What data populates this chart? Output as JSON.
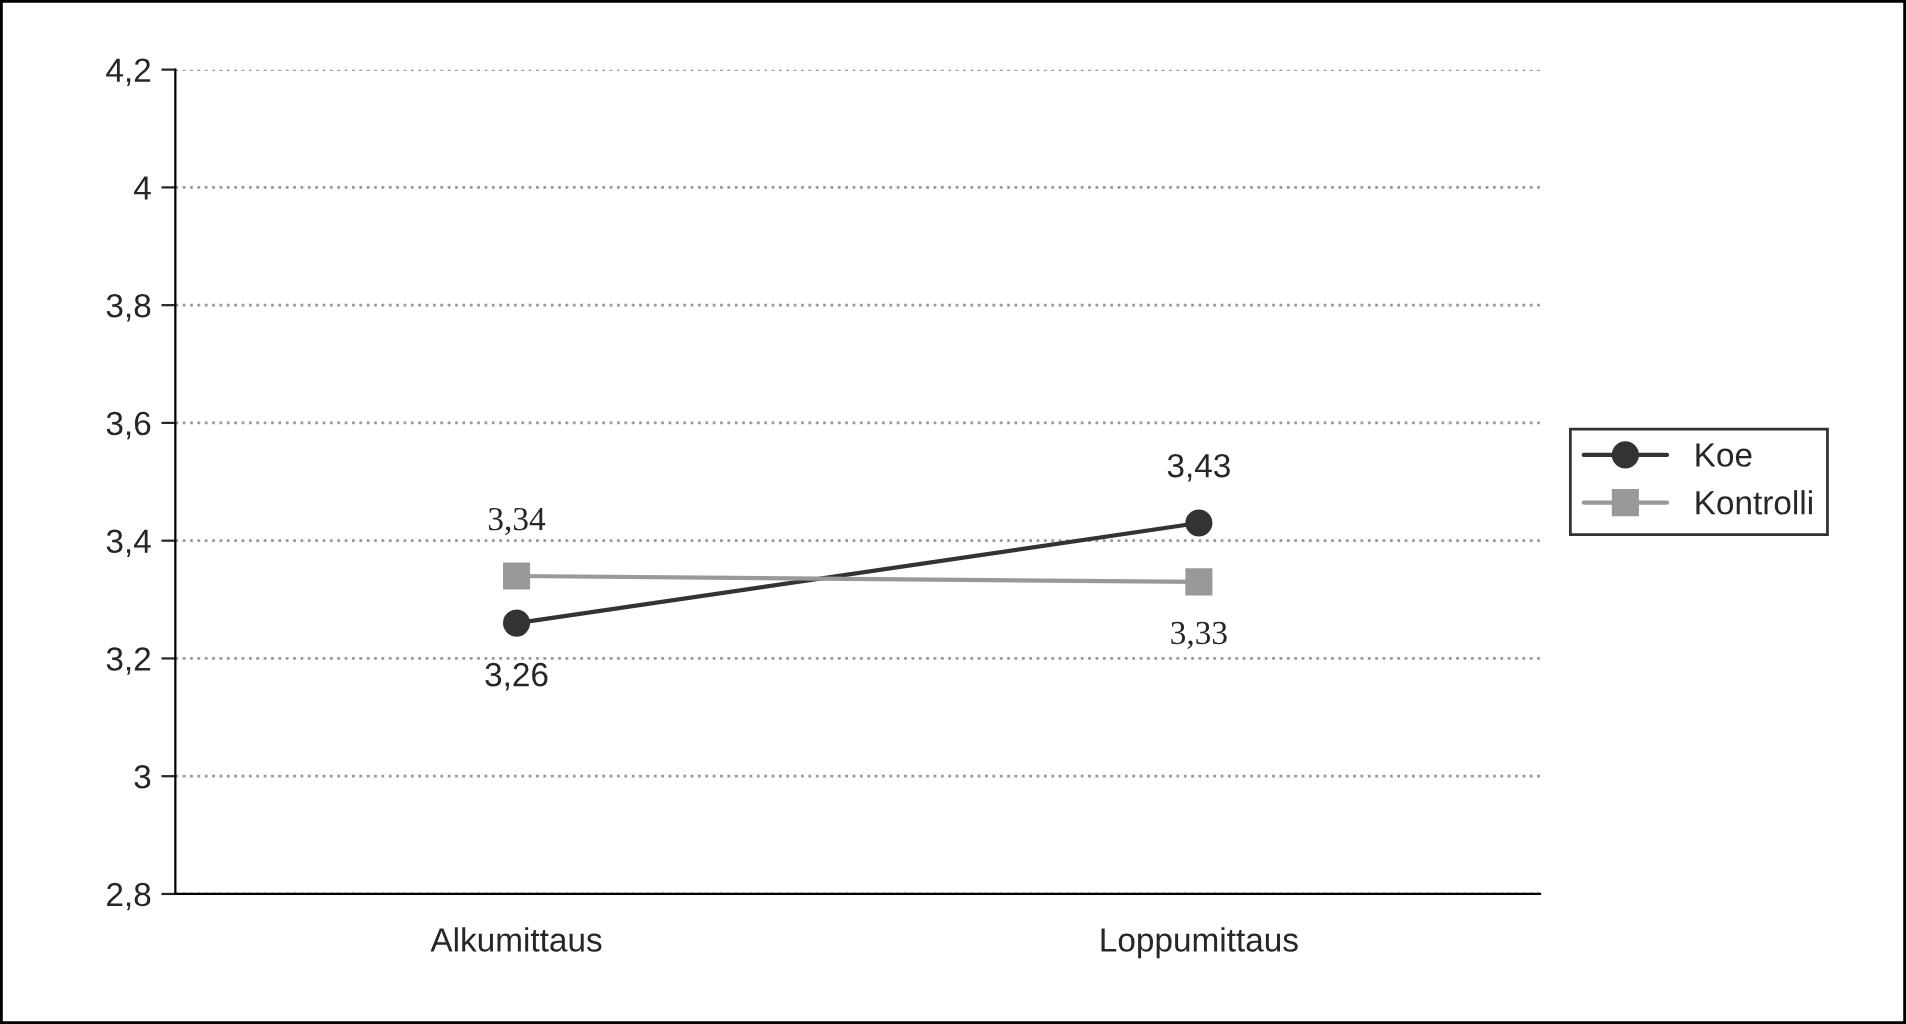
{
  "chart_data": {
    "type": "line",
    "categories": [
      "Alkumittaus",
      "Loppumittaus"
    ],
    "series": [
      {
        "name": "Koe",
        "color": "#333333",
        "marker": "circle",
        "values": [
          3.26,
          3.43
        ],
        "value_labels": [
          "3,26",
          "3,43"
        ]
      },
      {
        "name": "Kontrolli",
        "color": "#999999",
        "marker": "square",
        "values": [
          3.34,
          3.33
        ],
        "value_labels": [
          "3,34",
          "3,33"
        ]
      }
    ],
    "ylim": [
      2.8,
      4.2
    ],
    "yticks": [
      {
        "value": 2.8,
        "label": "2,8"
      },
      {
        "value": 3,
        "label": "3"
      },
      {
        "value": 3.2,
        "label": "3,2"
      },
      {
        "value": 3.4,
        "label": "3,4"
      },
      {
        "value": 3.6,
        "label": "3,6"
      },
      {
        "value": 3.8,
        "label": "3,8"
      },
      {
        "value": 4,
        "label": "4"
      },
      {
        "value": 4.2,
        "label": "4,2"
      }
    ],
    "grid": "y",
    "legend": "right",
    "line_style": "solid"
  }
}
